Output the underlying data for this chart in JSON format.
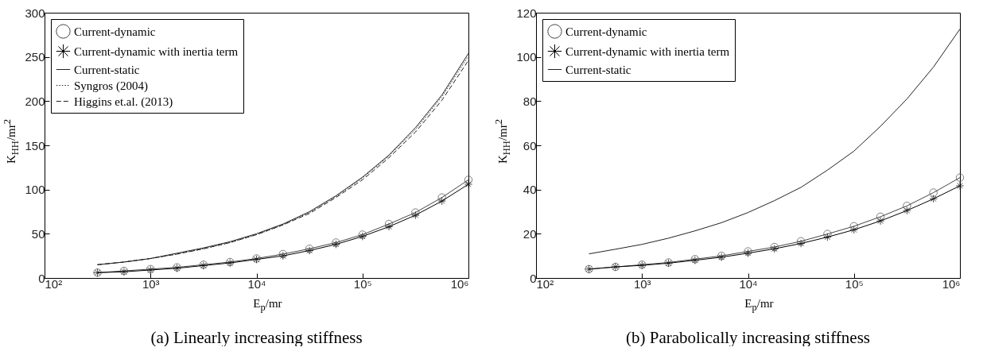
{
  "chart_data": [
    {
      "type": "line",
      "title": "(a) Linearly increasing stiffness",
      "xlabel": "E$_{p}$/mr",
      "ylabel": "K$_{HH}$/mr$^{2}$",
      "log": "x",
      "legend": "top left",
      "grid": false,
      "x": [
        316,
        562,
        1000,
        1778,
        3162,
        5623,
        10000,
        17783,
        31623,
        56234,
        100000,
        177828,
        316228,
        562341,
        1000000
      ],
      "xlim": [
        100,
        1000000
      ],
      "xticks": [
        {
          "value": 100,
          "label": "10²"
        },
        {
          "value": 1000,
          "label": "10³"
        },
        {
          "value": 10000,
          "label": "10⁴"
        },
        {
          "value": 100000,
          "label": "10⁵"
        },
        {
          "value": 1000000,
          "label": "10⁶"
        }
      ],
      "ylim": [
        0,
        300
      ],
      "yticks": [
        0,
        50,
        100,
        150,
        200,
        250,
        300
      ],
      "series": [
        {
          "name": "Current-dynamic",
          "color": "#444444",
          "marker": "circle",
          "line_style": "solid",
          "values": [
            6,
            8,
            10,
            12,
            15,
            18,
            22,
            27,
            33,
            40,
            49,
            61,
            74,
            91,
            111
          ]
        },
        {
          "name": "Current-dynamic with inertia term",
          "color": "#000000",
          "marker": "cross",
          "line_style": "solid",
          "values": [
            6,
            7,
            9,
            11,
            14,
            17,
            21,
            25,
            31,
            38,
            47,
            58,
            71,
            87,
            106
          ]
        },
        {
          "name": "Current-static",
          "color": "#222222",
          "marker": "none",
          "line_style": "solid",
          "values": [
            15,
            18,
            22,
            28,
            34,
            41,
            50,
            61,
            75,
            93,
            114,
            139,
            170,
            207,
            254
          ]
        },
        {
          "name": "Syngros (2004)",
          "color": "#222222",
          "marker": "none",
          "line_style": "dotted",
          "values": [
            15,
            18,
            22,
            27,
            33,
            40,
            49,
            60,
            74,
            92,
            113,
            138,
            168,
            205,
            251
          ]
        },
        {
          "name": "Higgins et.al. (2013)",
          "color": "#222222",
          "marker": "none",
          "line_style": "dashed",
          "values": [
            15,
            18,
            22,
            27,
            33,
            40,
            49,
            60,
            73,
            91,
            111,
            136,
            165,
            201,
            246
          ]
        }
      ]
    },
    {
      "type": "line",
      "title": "(b) Parabolically increasing stiffness",
      "xlabel": "E$_{p}$/mr",
      "ylabel": "K$_{HH}$/mr$^{2}$",
      "log": "x",
      "legend": "top left",
      "grid": false,
      "x": [
        316,
        562,
        1000,
        1778,
        3162,
        5623,
        10000,
        17783,
        31623,
        56234,
        100000,
        177828,
        316228,
        562341,
        1000000
      ],
      "xlim": [
        100,
        1000000
      ],
      "xticks": [
        {
          "value": 100,
          "label": "10²"
        },
        {
          "value": 1000,
          "label": "10³"
        },
        {
          "value": 10000,
          "label": "10⁴"
        },
        {
          "value": 100000,
          "label": "10⁵"
        },
        {
          "value": 1000000,
          "label": "10⁶"
        }
      ],
      "ylim": [
        0,
        120
      ],
      "yticks": [
        0,
        20,
        40,
        60,
        80,
        100,
        120
      ],
      "series": [
        {
          "name": "Current-dynamic",
          "color": "#444444",
          "marker": "circle",
          "line_style": "solid",
          "values": [
            4,
            5,
            6,
            7,
            8.5,
            10,
            12,
            14,
            16.6,
            19.9,
            23.4,
            27.7,
            32.6,
            38.6,
            45.4
          ]
        },
        {
          "name": "Current-dynamic with inertia term",
          "color": "#000000",
          "marker": "cross",
          "line_style": "solid",
          "values": [
            4,
            5,
            5.7,
            6.7,
            8,
            9.4,
            11.2,
            13.2,
            15.6,
            18.5,
            21.8,
            25.8,
            30.5,
            35.8,
            41.7
          ]
        },
        {
          "name": "Current-static",
          "color": "#222222",
          "marker": "none",
          "line_style": "solid",
          "values": [
            10.9,
            13,
            15.2,
            18,
            21.3,
            25,
            29.6,
            35,
            41,
            48.8,
            57.4,
            68.6,
            81,
            95.4,
            112.6
          ]
        }
      ]
    }
  ]
}
